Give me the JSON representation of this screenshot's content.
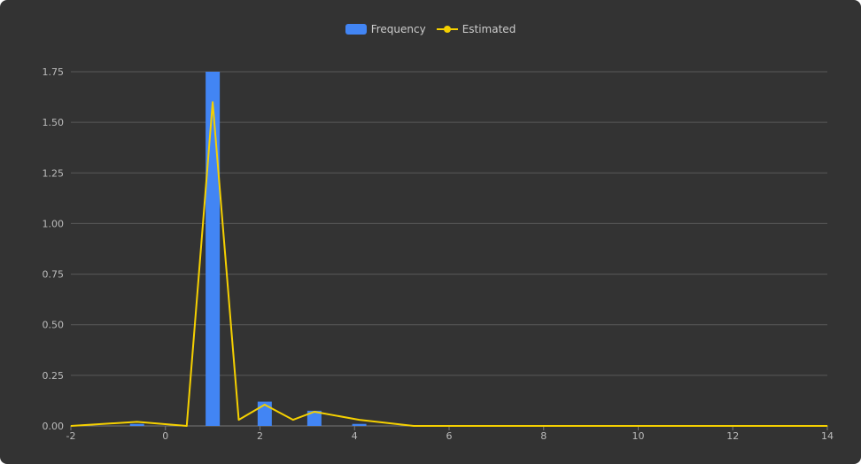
{
  "chart_data": {
    "type": "bar",
    "title": "",
    "xlabel": "",
    "ylabel": "",
    "xlim": [
      -2,
      14
    ],
    "ylim": [
      0,
      1.75
    ],
    "x_ticks": [
      -2,
      0,
      2,
      4,
      6,
      8,
      10,
      12,
      14
    ],
    "x_tick_labels": [
      "-2",
      "0",
      "2",
      "4",
      "6",
      "8",
      "10",
      "12",
      "14"
    ],
    "y_ticks": [
      0,
      0.25,
      0.5,
      0.75,
      1.0,
      1.25,
      1.5,
      1.75
    ],
    "y_tick_labels": [
      "0.00",
      "0.25",
      "0.50",
      "0.75",
      "1.00",
      "1.25",
      "1.50",
      "1.75"
    ],
    "grid": true,
    "legend_position": "top-center",
    "series": [
      {
        "name": "Frequency",
        "kind": "bar",
        "color": "#4285f4",
        "x": [
          -0.6,
          1.0,
          2.1,
          3.15,
          4.1
        ],
        "values": [
          0.01,
          1.75,
          0.12,
          0.075,
          0.01
        ]
      },
      {
        "name": "Estimated",
        "kind": "line",
        "color": "#f5d000",
        "x": [
          -2.0,
          -0.6,
          0.45,
          1.0,
          1.55,
          2.1,
          2.7,
          3.15,
          4.1,
          5.25,
          14.0
        ],
        "values": [
          0.0,
          0.02,
          0.0,
          1.6,
          0.03,
          0.105,
          0.03,
          0.07,
          0.03,
          0.0,
          0.0
        ]
      }
    ]
  }
}
